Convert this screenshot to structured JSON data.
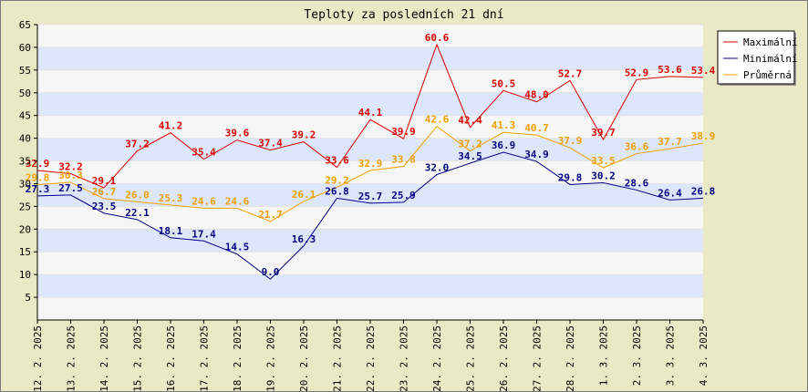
{
  "chart_data": {
    "type": "line",
    "title": "Teploty za posledních 21 dní",
    "xlabel": "",
    "ylabel": "",
    "categories": [
      "12. 2. 2025",
      "13. 2. 2025",
      "14. 2. 2025",
      "15. 2. 2025",
      "16. 2. 2025",
      "17. 2. 2025",
      "18. 2. 2025",
      "19. 2. 2025",
      "20. 2. 2025",
      "21. 2. 2025",
      "22. 2. 2025",
      "23. 2. 2025",
      "24. 2. 2025",
      "25. 2. 2025",
      "26. 2. 2025",
      "27. 2. 2025",
      "28. 2. 2025",
      "1. 3. 2025",
      "2. 3. 2025",
      "3. 3. 2025",
      "4. 3. 2025"
    ],
    "ylim": [
      0,
      65
    ],
    "yticks": [
      5,
      10,
      15,
      20,
      25,
      30,
      35,
      40,
      45,
      50,
      55,
      60,
      65
    ],
    "grid": true,
    "legend_position": "top-right",
    "series": [
      {
        "name": "Maximální",
        "color": "#dd0000",
        "values": [
          32.9,
          32.2,
          29.1,
          37.2,
          41.2,
          35.4,
          39.6,
          37.4,
          39.2,
          33.6,
          44.1,
          39.9,
          60.6,
          42.4,
          50.5,
          48.0,
          52.7,
          39.7,
          52.9,
          53.6,
          53.4
        ]
      },
      {
        "name": "Minimální",
        "color": "#000080",
        "values": [
          27.3,
          27.5,
          23.5,
          22.1,
          18.1,
          17.4,
          14.5,
          9.0,
          16.3,
          26.8,
          25.7,
          25.9,
          32.0,
          34.5,
          36.9,
          34.9,
          29.8,
          30.2,
          28.6,
          26.4,
          26.8
        ]
      },
      {
        "name": "Průměrná",
        "color": "#f0a000",
        "values": [
          29.8,
          30.3,
          26.7,
          26.0,
          25.3,
          24.6,
          24.6,
          21.7,
          26.1,
          29.2,
          32.9,
          33.8,
          42.6,
          37.2,
          41.3,
          40.7,
          37.9,
          33.5,
          36.6,
          37.7,
          38.9
        ]
      }
    ]
  }
}
